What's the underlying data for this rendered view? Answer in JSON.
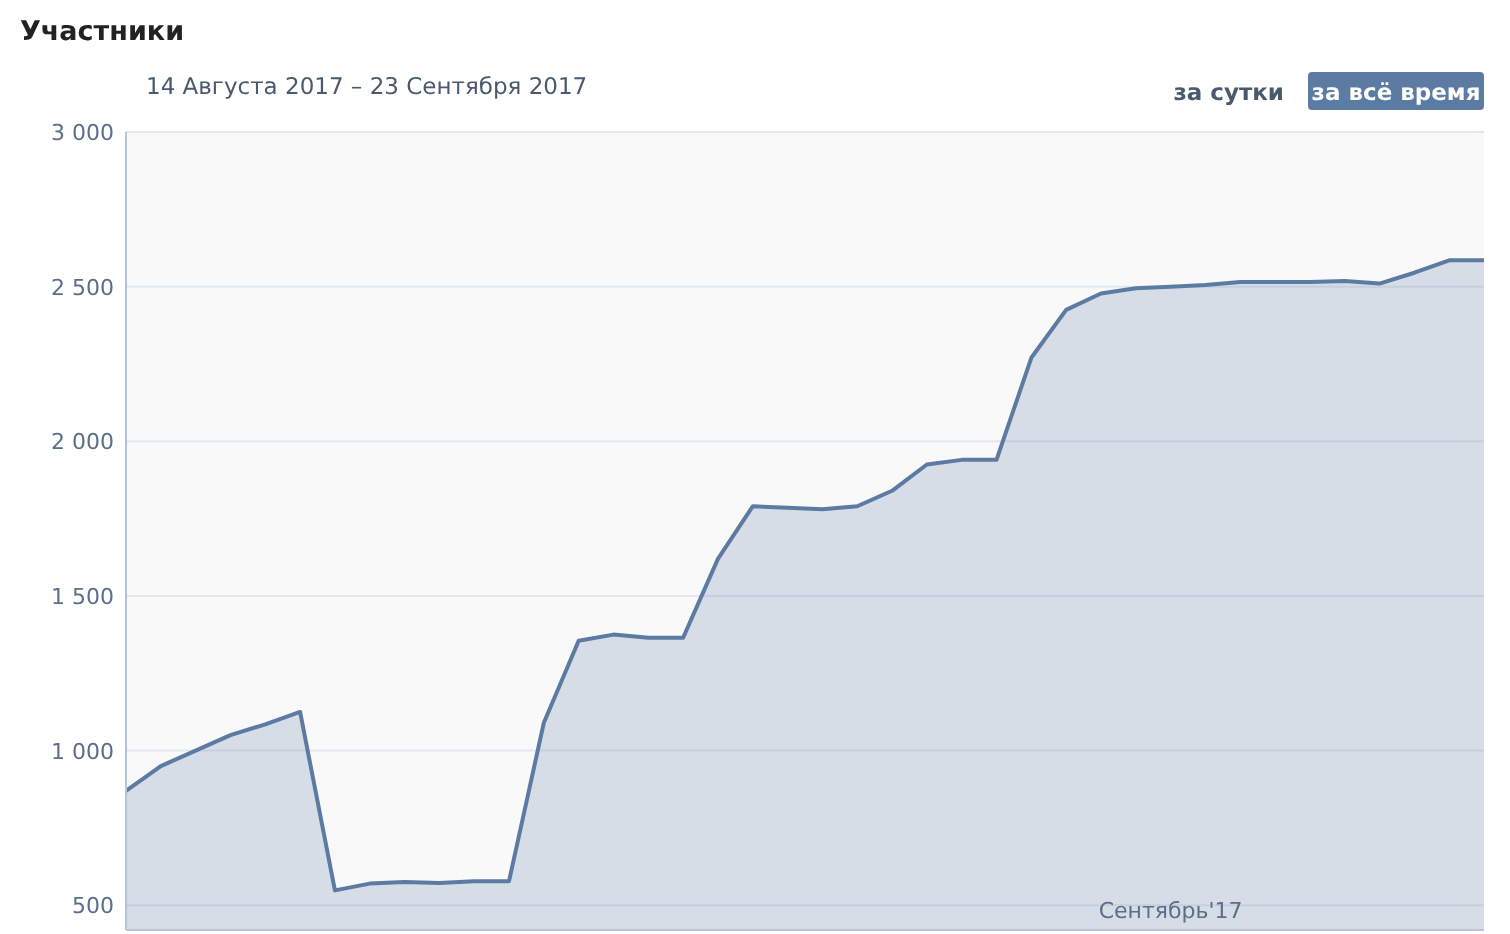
{
  "chart_data": {
    "type": "area",
    "title": "Участники",
    "subtitle": "14 Августа 2017 – 23 Сентября 2017",
    "annotations": [
      "за сутки",
      "за всё время"
    ],
    "categories": [
      null,
      null,
      null,
      null,
      null,
      null,
      null,
      null,
      null,
      null,
      null,
      null,
      null,
      null,
      null,
      null,
      null,
      null,
      null,
      null,
      null,
      null,
      null,
      null,
      null,
      null,
      null,
      null,
      null,
      null,
      "Сентябрь'17",
      null,
      null,
      null,
      null,
      null,
      null,
      null,
      null,
      null
    ],
    "series": [
      {
        "color": "#5b7ba3",
        "values": [
          870,
          950,
          1000,
          1050,
          1085,
          1125,
          548,
          570,
          575,
          572,
          578,
          578,
          1090,
          1355,
          1375,
          1365,
          1365,
          1620,
          1790,
          1785,
          1780,
          1790,
          1840,
          1925,
          1940,
          1940,
          2270,
          2425,
          2478,
          2495,
          2500,
          2505,
          2515,
          2515,
          2515,
          2518,
          2510,
          2545,
          2585,
          2585
        ]
      }
    ],
    "ylim": [
      420,
      3000
    ],
    "yticks": [
      {
        "value": 500,
        "label": "500"
      },
      {
        "value": 1000,
        "label": "1 000"
      },
      {
        "value": 1500,
        "label": "1 500"
      },
      {
        "value": 2000,
        "label": "2 000"
      },
      {
        "value": 2500,
        "label": "2 500"
      },
      {
        "value": 3000,
        "label": "3 000"
      }
    ],
    "grid": "y",
    "marker": "none",
    "line_style": "solid"
  }
}
